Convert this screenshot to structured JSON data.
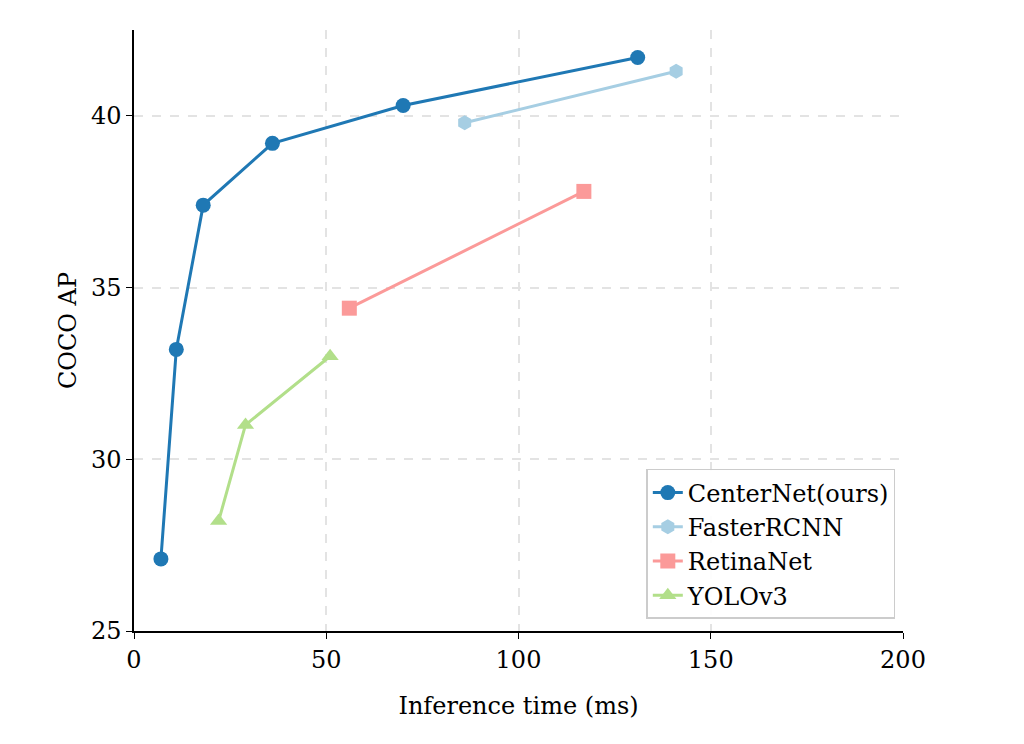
{
  "chart_data": {
    "type": "line",
    "x_label": "Inference time (ms)",
    "y_label": "COCO AP",
    "xlim": [
      0,
      200
    ],
    "xticks": [
      0,
      50,
      100,
      150,
      200
    ],
    "ylim": [
      25,
      42.5
    ],
    "yticks": [
      25,
      30,
      35,
      40
    ],
    "grid": true,
    "legend": "lower right",
    "series": [
      {
        "name": "CenterNet(ours)",
        "color": "#1f78b4",
        "marker": "circle",
        "x": [
          7,
          11,
          18,
          36,
          70,
          131
        ],
        "values": [
          27.1,
          33.2,
          37.4,
          39.2,
          40.3,
          41.7
        ]
      },
      {
        "name": "FasterRCNN",
        "color": "#a6cee3",
        "marker": "hexagon",
        "x": [
          86,
          141
        ],
        "values": [
          39.8,
          41.3
        ]
      },
      {
        "name": "RetinaNet",
        "color": "#fb9a99",
        "marker": "square",
        "x": [
          56,
          117
        ],
        "values": [
          34.4,
          37.8
        ]
      },
      {
        "name": "YOLOv3",
        "color": "#b2df8a",
        "marker": "triangle-up",
        "x": [
          22,
          29,
          51
        ],
        "values": [
          28.2,
          31.0,
          33.0
        ]
      }
    ]
  }
}
